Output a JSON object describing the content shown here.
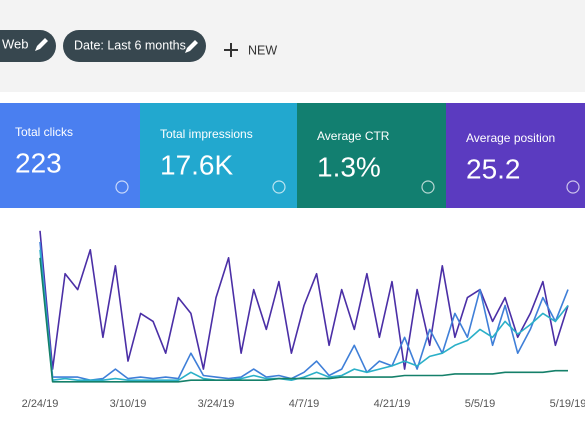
{
  "filters": {
    "chips": [
      "Web",
      "Date: Last 6 months"
    ],
    "new_button": "NEW"
  },
  "metrics": [
    {
      "label": "Total clicks",
      "value": "223",
      "color": "#4a7ff0"
    },
    {
      "label": "Total impressions",
      "value": "17.6K",
      "color": "#22a8cf"
    },
    {
      "label": "Average CTR",
      "value": "1.3%",
      "color": "#127f70"
    },
    {
      "label": "Average position",
      "value": "25.2",
      "color": "#5b3bc0"
    }
  ],
  "chart_data": {
    "type": "line",
    "categories": [
      "2/24/19",
      null,
      null,
      null,
      null,
      null,
      null,
      "3/10/19",
      null,
      null,
      null,
      null,
      null,
      null,
      "3/24/19",
      null,
      null,
      null,
      null,
      null,
      null,
      "4/7/19",
      null,
      null,
      null,
      null,
      null,
      null,
      "4/21/19",
      null,
      null,
      null,
      null,
      null,
      null,
      "5/5/19",
      null,
      null,
      null,
      null,
      null,
      null,
      "5/19/19"
    ],
    "ylim": [
      0,
      100
    ],
    "series": [
      {
        "name": "Average position",
        "color": "#4b2fa6",
        "values": [
          97,
          10,
          70,
          60,
          85,
          30,
          75,
          15,
          45,
          40,
          20,
          55,
          45,
          10,
          55,
          80,
          20,
          60,
          35,
          65,
          20,
          50,
          70,
          25,
          60,
          35,
          70,
          30,
          65,
          10,
          60,
          25,
          75,
          30,
          55,
          60,
          40,
          55,
          30,
          45,
          65,
          25,
          50
        ]
      },
      {
        "name": "Total clicks",
        "color": "#3f7fd8",
        "values": [
          90,
          5,
          5,
          5,
          3,
          4,
          10,
          4,
          5,
          4,
          5,
          4,
          20,
          6,
          5,
          4,
          5,
          10,
          5,
          6,
          4,
          8,
          15,
          6,
          10,
          25,
          8,
          15,
          12,
          30,
          10,
          35,
          20,
          45,
          30,
          60,
          25,
          50,
          20,
          35,
          55,
          40,
          60
        ]
      },
      {
        "name": "Total impressions",
        "color": "#2bb0c8",
        "values": [
          85,
          3,
          4,
          3,
          3,
          3,
          4,
          3,
          3,
          3,
          3,
          3,
          8,
          4,
          3,
          3,
          4,
          6,
          4,
          4,
          3,
          5,
          8,
          5,
          6,
          10,
          8,
          10,
          12,
          15,
          12,
          18,
          20,
          25,
          28,
          35,
          30,
          40,
          32,
          38,
          45,
          40,
          50
        ]
      },
      {
        "name": "Average CTR",
        "color": "#15806a",
        "values": [
          80,
          2,
          2,
          2,
          2,
          2,
          2,
          2,
          2,
          2,
          2,
          2,
          3,
          3,
          3,
          3,
          3,
          3,
          3,
          4,
          4,
          4,
          4,
          4,
          5,
          5,
          5,
          5,
          5,
          6,
          6,
          6,
          6,
          7,
          7,
          7,
          7,
          8,
          8,
          8,
          8,
          9,
          9
        ]
      }
    ]
  }
}
